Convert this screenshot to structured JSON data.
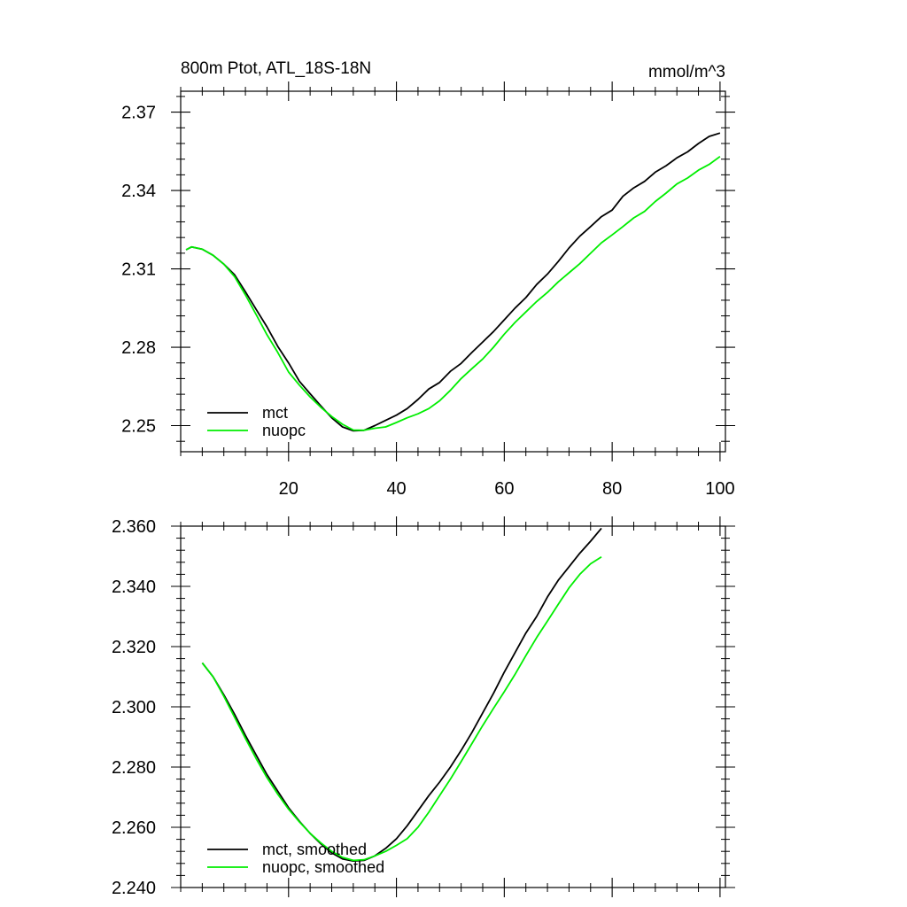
{
  "chart_data": [
    {
      "type": "line",
      "title_left": "800m Ptot, ATL_18S-18N",
      "title_right": "mmol/m^3",
      "xlim": [
        0,
        101
      ],
      "ylim": [
        2.24,
        2.378
      ],
      "x_ticks": [
        20,
        40,
        60,
        80,
        100
      ],
      "x_tick_labels": [
        "20",
        "40",
        "60",
        "80",
        "100"
      ],
      "y_ticks": [
        2.25,
        2.28,
        2.31,
        2.34,
        2.37
      ],
      "y_tick_labels": [
        "2.25",
        "2.28",
        "2.31",
        "2.34",
        "2.37"
      ],
      "legend_position": "bottom-left",
      "series": [
        {
          "name": "mct",
          "color": "#000000",
          "points": [
            [
              1,
              2.3173
            ],
            [
              2,
              2.3184
            ],
            [
              4,
              2.3175
            ],
            [
              6,
              2.3152
            ],
            [
              8,
              2.3118
            ],
            [
              10,
              2.3077
            ],
            [
              12,
              2.3012
            ],
            [
              14,
              2.2945
            ],
            [
              16,
              2.2878
            ],
            [
              18,
              2.2803
            ],
            [
              20,
              2.274
            ],
            [
              22,
              2.267
            ],
            [
              24,
              2.2622
            ],
            [
              26,
              2.2575
            ],
            [
              28,
              2.253
            ],
            [
              30,
              2.2495
            ],
            [
              32,
              2.248
            ],
            [
              34,
              2.2482
            ],
            [
              36,
              2.25
            ],
            [
              38,
              2.252
            ],
            [
              40,
              2.254
            ],
            [
              42,
              2.2565
            ],
            [
              44,
              2.26
            ],
            [
              46,
              2.264
            ],
            [
              48,
              2.2665
            ],
            [
              50,
              2.2708
            ],
            [
              52,
              2.2738
            ],
            [
              54,
              2.278
            ],
            [
              56,
              2.282
            ],
            [
              58,
              2.286
            ],
            [
              60,
              2.2905
            ],
            [
              62,
              2.295
            ],
            [
              64,
              2.299
            ],
            [
              66,
              2.304
            ],
            [
              68,
              2.308
            ],
            [
              70,
              2.3128
            ],
            [
              72,
              2.318
            ],
            [
              74,
              2.3225
            ],
            [
              76,
              2.3262
            ],
            [
              78,
              2.33
            ],
            [
              80,
              2.3325
            ],
            [
              82,
              2.3378
            ],
            [
              84,
              2.341
            ],
            [
              86,
              2.3435
            ],
            [
              88,
              2.347
            ],
            [
              90,
              2.3495
            ],
            [
              92,
              2.3525
            ],
            [
              94,
              2.3548
            ],
            [
              96,
              2.358
            ],
            [
              98,
              2.3607
            ],
            [
              100,
              2.362
            ]
          ]
        },
        {
          "name": "nuopc",
          "color": "#00ee00",
          "points": [
            [
              1,
              2.3173
            ],
            [
              2,
              2.3184
            ],
            [
              4,
              2.3175
            ],
            [
              6,
              2.3152
            ],
            [
              8,
              2.3118
            ],
            [
              10,
              2.307
            ],
            [
              12,
              2.3
            ],
            [
              14,
              2.2925
            ],
            [
              16,
              2.2848
            ],
            [
              18,
              2.278
            ],
            [
              20,
              2.2705
            ],
            [
              22,
              2.2655
            ],
            [
              24,
              2.261
            ],
            [
              26,
              2.257
            ],
            [
              28,
              2.2535
            ],
            [
              30,
              2.2505
            ],
            [
              32,
              2.2483
            ],
            [
              34,
              2.2482
            ],
            [
              36,
              2.249
            ],
            [
              38,
              2.2495
            ],
            [
              40,
              2.2512
            ],
            [
              42,
              2.253
            ],
            [
              44,
              2.2545
            ],
            [
              46,
              2.2565
            ],
            [
              48,
              2.2595
            ],
            [
              50,
              2.2635
            ],
            [
              52,
              2.268
            ],
            [
              54,
              2.2718
            ],
            [
              56,
              2.2755
            ],
            [
              58,
              2.28
            ],
            [
              60,
              2.285
            ],
            [
              62,
              2.2895
            ],
            [
              64,
              2.2935
            ],
            [
              66,
              2.2975
            ],
            [
              68,
              2.301
            ],
            [
              70,
              2.305
            ],
            [
              72,
              2.3085
            ],
            [
              74,
              2.312
            ],
            [
              76,
              2.316
            ],
            [
              78,
              2.32
            ],
            [
              80,
              2.323
            ],
            [
              82,
              2.3262
            ],
            [
              84,
              2.3295
            ],
            [
              86,
              2.332
            ],
            [
              88,
              2.3358
            ],
            [
              90,
              2.339
            ],
            [
              92,
              2.3425
            ],
            [
              94,
              2.3448
            ],
            [
              96,
              2.3478
            ],
            [
              98,
              2.35
            ],
            [
              100,
              2.353
            ]
          ]
        }
      ]
    },
    {
      "type": "line",
      "xlim": [
        0,
        101
      ],
      "ylim": [
        2.24,
        2.36
      ],
      "x_ticks": [
        20,
        40,
        60,
        80,
        100
      ],
      "y_ticks": [
        2.24,
        2.26,
        2.28,
        2.3,
        2.32,
        2.34,
        2.36
      ],
      "y_tick_labels": [
        "2.240",
        "2.260",
        "2.280",
        "2.300",
        "2.320",
        "2.340",
        "2.360"
      ],
      "legend_position": "bottom-left",
      "series": [
        {
          "name": "mct, smoothed",
          "color": "#000000",
          "points": [
            [
              4,
              2.3146
            ],
            [
              6,
              2.31
            ],
            [
              8,
              2.304
            ],
            [
              10,
              2.2975
            ],
            [
              12,
              2.2905
            ],
            [
              14,
              2.284
            ],
            [
              16,
              2.2775
            ],
            [
              18,
              2.272
            ],
            [
              20,
              2.2665
            ],
            [
              22,
              2.262
            ],
            [
              24,
              2.258
            ],
            [
              26,
              2.2545
            ],
            [
              28,
              2.2515
            ],
            [
              30,
              2.2495
            ],
            [
              32,
              2.2488
            ],
            [
              34,
              2.249
            ],
            [
              36,
              2.2505
            ],
            [
              38,
              2.253
            ],
            [
              40,
              2.2562
            ],
            [
              42,
              2.2605
            ],
            [
              44,
              2.2655
            ],
            [
              46,
              2.2705
            ],
            [
              48,
              2.275
            ],
            [
              50,
              2.28
            ],
            [
              52,
              2.2855
            ],
            [
              54,
              2.2915
            ],
            [
              56,
              2.298
            ],
            [
              58,
              2.3045
            ],
            [
              60,
              2.3115
            ],
            [
              62,
              2.318
            ],
            [
              64,
              2.3245
            ],
            [
              66,
              2.33
            ],
            [
              68,
              2.3365
            ],
            [
              70,
              2.342
            ],
            [
              72,
              2.3465
            ],
            [
              74,
              2.351
            ],
            [
              76,
              2.355
            ],
            [
              78,
              2.3593
            ]
          ]
        },
        {
          "name": "nuopc, smoothed",
          "color": "#00ee00",
          "points": [
            [
              4,
              2.3146
            ],
            [
              6,
              2.31
            ],
            [
              8,
              2.3035
            ],
            [
              10,
              2.2965
            ],
            [
              12,
              2.2895
            ],
            [
              14,
              2.2828
            ],
            [
              16,
              2.2765
            ],
            [
              18,
              2.271
            ],
            [
              20,
              2.266
            ],
            [
              22,
              2.2618
            ],
            [
              24,
              2.258
            ],
            [
              26,
              2.2548
            ],
            [
              28,
              2.252
            ],
            [
              30,
              2.25
            ],
            [
              32,
              2.249
            ],
            [
              34,
              2.2492
            ],
            [
              36,
              2.2505
            ],
            [
              38,
              2.252
            ],
            [
              40,
              2.254
            ],
            [
              42,
              2.2562
            ],
            [
              44,
              2.26
            ],
            [
              46,
              2.265
            ],
            [
              48,
              2.2705
            ],
            [
              50,
              2.276
            ],
            [
              52,
              2.2818
            ],
            [
              54,
              2.2878
            ],
            [
              56,
              2.2938
            ],
            [
              58,
              2.2995
            ],
            [
              60,
              2.305
            ],
            [
              62,
              2.3108
            ],
            [
              64,
              2.317
            ],
            [
              66,
              2.323
            ],
            [
              68,
              2.3285
            ],
            [
              70,
              2.334
            ],
            [
              72,
              2.3395
            ],
            [
              74,
              2.344
            ],
            [
              76,
              2.3475
            ],
            [
              78,
              2.3498
            ]
          ]
        }
      ]
    }
  ]
}
